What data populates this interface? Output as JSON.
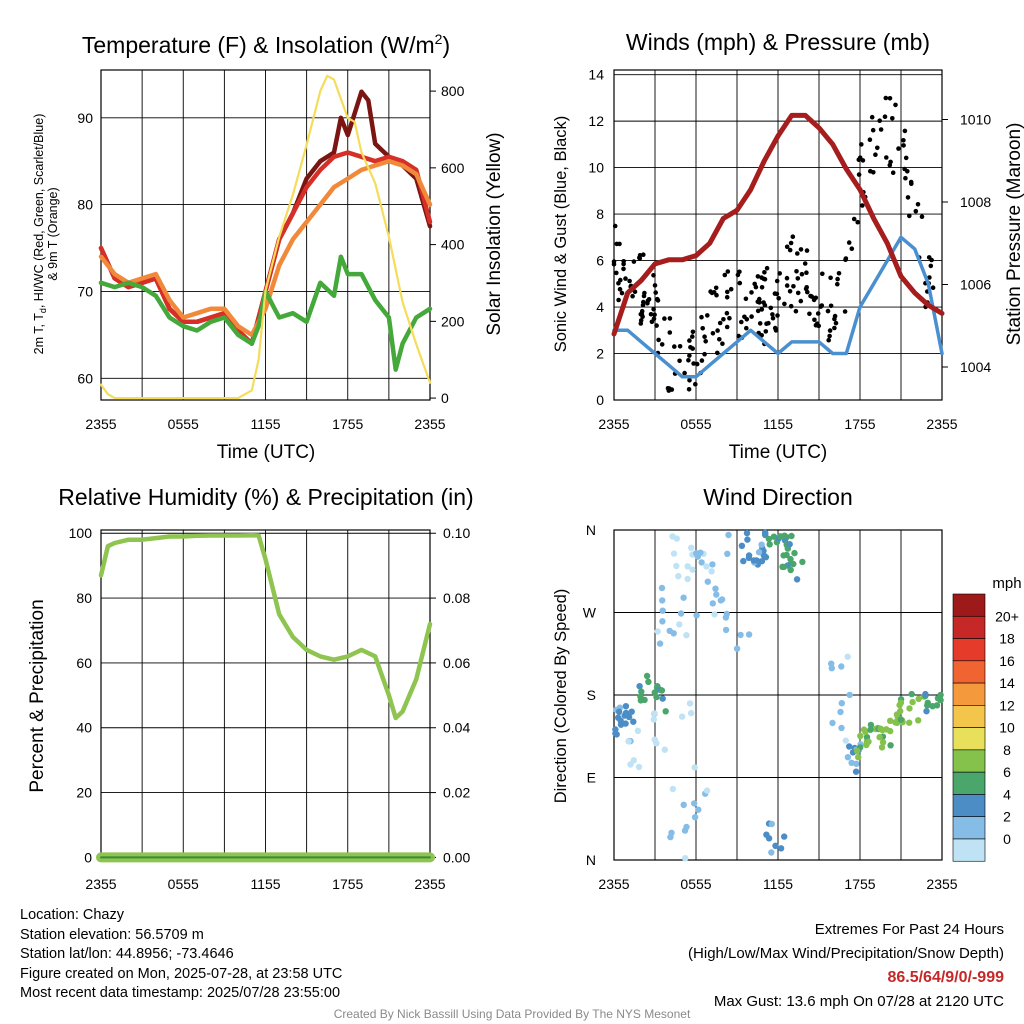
{
  "panels": {
    "temperature": {
      "title_main": "Temperature (F) & Insolation (W/m",
      "title_sup": "2",
      "title_end": ")",
      "ylabel_left_line1": "2m T, T",
      "ylabel_left_sub": "d",
      "ylabel_left_rest": ", HI/WC (Red, Green, Scarlet/Blue)",
      "ylabel_left_line2": "& 9m T (Orange)",
      "ylabel_right": "Solar Insolation (Yellow)",
      "xlabel": "Time (UTC)"
    },
    "winds": {
      "title": "Winds (mph) & Pressure (mb)",
      "ylabel_left": "Sonic Wind & Gust (Blue, Black)",
      "ylabel_right": "Station Pressure (Maroon)",
      "xlabel": "Time (UTC)"
    },
    "humidity": {
      "title": "Relative Humidity (%) & Precipitation (in)",
      "ylabel_left": "Percent & Precipitation"
    },
    "direction": {
      "title": "Wind Direction",
      "ylabel_left": "Direction (Colored By Speed)",
      "legend_title": "mph"
    }
  },
  "chart_data": [
    {
      "type": "line",
      "name": "temperature",
      "x_ticks": [
        "2355",
        "0555",
        "1155",
        "1755",
        "2355"
      ],
      "x_range_hours": [
        0,
        24
      ],
      "y_left_ticks": [
        60,
        70,
        80,
        90
      ],
      "ylim_left": [
        57.5,
        95.5
      ],
      "y_right_ticks": [
        0,
        200,
        400,
        600,
        800
      ],
      "ylim_right": [
        -5,
        855
      ],
      "grid": true,
      "series": [
        {
          "axis": "left",
          "color": "#7a1512",
          "x": [
            0,
            1,
            2,
            3,
            4,
            5,
            6,
            7,
            8,
            9,
            10,
            11,
            12,
            13,
            14,
            15,
            16,
            17,
            17.5,
            18,
            19,
            19.5,
            20,
            21,
            22,
            23,
            24
          ],
          "y": [
            75,
            71.5,
            70.5,
            71,
            71.5,
            68,
            66.5,
            66.5,
            67,
            67.5,
            65.5,
            64,
            70,
            76,
            79,
            83,
            85,
            86,
            90,
            88,
            93,
            92,
            87,
            85.5,
            84.5,
            83,
            77.5
          ]
        },
        {
          "axis": "left",
          "color": "#d62f27",
          "x": [
            0,
            1,
            2,
            3,
            4,
            5,
            6,
            7,
            8,
            9,
            10,
            11,
            12,
            13,
            14,
            15,
            16,
            17,
            18,
            19,
            20,
            21,
            22,
            23,
            24
          ],
          "y": [
            75,
            71.5,
            70.5,
            71,
            71.5,
            68,
            66.5,
            66.5,
            67,
            67.5,
            65.5,
            64,
            70,
            76,
            79,
            82,
            84,
            85.5,
            86,
            85.5,
            85,
            85.5,
            85,
            84,
            78
          ]
        },
        {
          "axis": "left",
          "color": "#f08a3a",
          "x": [
            0,
            1,
            2,
            3,
            4,
            5,
            6,
            7,
            8,
            9,
            10,
            11,
            12,
            13,
            14,
            15,
            16,
            17,
            18,
            19,
            20,
            21,
            22,
            23,
            24
          ],
          "y": [
            74,
            72,
            71,
            71.5,
            72,
            69,
            67,
            67.5,
            68,
            68,
            66,
            65,
            68,
            73,
            76,
            78,
            80,
            82,
            83,
            84,
            84.5,
            85,
            84.5,
            83.5,
            80
          ]
        },
        {
          "axis": "left",
          "color": "#44a83a",
          "x": [
            0,
            1,
            2,
            3,
            4,
            5,
            6,
            7,
            8,
            9,
            10,
            11,
            11.5,
            12,
            13,
            14,
            15,
            16,
            17,
            17.5,
            18,
            19,
            20,
            21,
            21.5,
            22,
            23,
            24
          ],
          "y": [
            71,
            70.5,
            71,
            70.5,
            69.5,
            67,
            66,
            65.5,
            66.5,
            67,
            65,
            64,
            66,
            70,
            67,
            67.5,
            66.5,
            71,
            69.5,
            74,
            72,
            72,
            69,
            67,
            61,
            64,
            67,
            68
          ]
        },
        {
          "axis": "right",
          "color": "#f5dc5a",
          "x": [
            0,
            0.5,
            1,
            2,
            4,
            6,
            8,
            9,
            10,
            11,
            11.5,
            12,
            13,
            14,
            15,
            16,
            16.5,
            17,
            18,
            18.5,
            19,
            20,
            21,
            22,
            23,
            24
          ],
          "y": [
            35,
            10,
            0,
            0,
            0,
            0,
            0,
            0,
            0,
            20,
            100,
            280,
            420,
            530,
            660,
            800,
            840,
            830,
            730,
            720,
            640,
            560,
            420,
            250,
            140,
            40
          ]
        }
      ]
    },
    {
      "type": "line",
      "name": "winds",
      "x_ticks": [
        "2355",
        "0555",
        "1155",
        "1755",
        "2355"
      ],
      "x_range_hours": [
        0,
        24
      ],
      "y_left_ticks": [
        0,
        2,
        4,
        6,
        8,
        10,
        12,
        14
      ],
      "ylim_left": [
        0,
        14.2
      ],
      "y_right_ticks": [
        1004,
        1006,
        1008,
        1010
      ],
      "ylim_right": [
        1003.2,
        1011.2
      ],
      "grid": true,
      "series": [
        {
          "axis": "left",
          "color": "#4a90d0",
          "x": [
            0,
            1,
            2,
            3,
            4,
            5,
            6,
            7,
            8,
            9,
            10,
            11,
            12,
            13,
            14,
            15,
            16,
            17,
            18,
            19,
            20,
            21,
            22,
            23,
            24
          ],
          "y": [
            3,
            3,
            2.5,
            2,
            1.5,
            1,
            1,
            1.5,
            2,
            2.5,
            3,
            2.5,
            2,
            2.5,
            2.5,
            2.5,
            2,
            2,
            4,
            5,
            6,
            7,
            6.5,
            5,
            2
          ]
        },
        {
          "axis": "right",
          "color": "#a51d1d",
          "x": [
            0,
            1,
            2,
            3,
            4,
            5,
            6,
            7,
            8,
            9,
            10,
            11,
            12,
            13,
            14,
            15,
            16,
            17,
            18,
            19,
            20,
            21,
            22,
            23,
            24
          ],
          "y": [
            1004.8,
            1005.8,
            1006.1,
            1006.5,
            1006.6,
            1006.6,
            1006.7,
            1007,
            1007.6,
            1007.8,
            1008.3,
            1009,
            1009.6,
            1010.1,
            1010.1,
            1009.8,
            1009.4,
            1008.8,
            1008.3,
            1007.6,
            1007,
            1006.2,
            1005.8,
            1005.5,
            1005.3
          ]
        }
      ]
    },
    {
      "type": "line",
      "name": "humidity",
      "x_ticks": [
        "2355",
        "0555",
        "1155",
        "1755",
        "2355"
      ],
      "x_range_hours": [
        0,
        24
      ],
      "y_left_ticks": [
        0,
        20,
        40,
        60,
        80,
        100
      ],
      "ylim_left": [
        -0.8,
        101
      ],
      "y_right_ticks": [
        "0.00",
        "0.02",
        "0.04",
        "0.06",
        "0.08",
        "0.10"
      ],
      "ylim_right": [
        -0.0008,
        0.101
      ],
      "grid": true,
      "series": [
        {
          "axis": "left",
          "color": "#8ec44f",
          "x": [
            0,
            0.5,
            1,
            2,
            3,
            4,
            5,
            6,
            7,
            8,
            9,
            10,
            11,
            11.5,
            12,
            13,
            14,
            15,
            16,
            17,
            18,
            19,
            20,
            21,
            21.5,
            22,
            23,
            24
          ],
          "y": [
            87,
            96,
            97,
            98,
            98,
            98.5,
            99,
            99,
            99.2,
            99.3,
            99.3,
            99.3,
            99.4,
            99.3,
            92,
            75,
            68,
            64,
            62,
            61,
            62,
            64,
            62,
            50,
            43,
            45,
            55,
            72
          ]
        },
        {
          "axis": "right",
          "color": "#3a8a3a",
          "x": [
            0,
            24
          ],
          "y": [
            0.0,
            0.0
          ]
        }
      ]
    },
    {
      "type": "scatter",
      "name": "direction",
      "x_ticks": [
        "2355",
        "0555",
        "1155",
        "1755",
        "2355"
      ],
      "x_range_hours": [
        0,
        24
      ],
      "y_ticks": [
        "N",
        "E",
        "S",
        "W",
        "N"
      ],
      "ylim_degrees": [
        0,
        360
      ],
      "grid": true,
      "legend": {
        "title": "mph",
        "labels": [
          "20+",
          "18",
          "16",
          "14",
          "12",
          "10",
          "8",
          "6",
          "4",
          "2",
          "0"
        ],
        "colors": [
          "#9e1a1a",
          "#c62828",
          "#e43b2b",
          "#f06432",
          "#f49a3d",
          "#f3c64b",
          "#e8e05a",
          "#85c24c",
          "#4aa66a",
          "#4c8dc6",
          "#86bde6",
          "#bfe3f5"
        ]
      }
    }
  ],
  "footer": {
    "location": "Location: Chazy",
    "elevation": "Station elevation: 56.5709 m",
    "latlon": "Station lat/lon: 44.8956; -73.4646",
    "created": "Figure created on Mon, 2025-07-28, at 23:58 UTC",
    "recent": "Most recent data timestamp: 2025/07/28 23:55:00",
    "extremes_title": "Extremes For Past 24 Hours",
    "extremes_sub": "(High/Low/Max Wind/Precipitation/Snow Depth)",
    "extremes_values": "86.5/64/9/0/-999",
    "max_gust": "Max Gust: 13.6 mph On 07/28 at 2120 UTC",
    "credit": "Created By Nick Bassill Using Data Provided By The NYS Mesonet"
  }
}
